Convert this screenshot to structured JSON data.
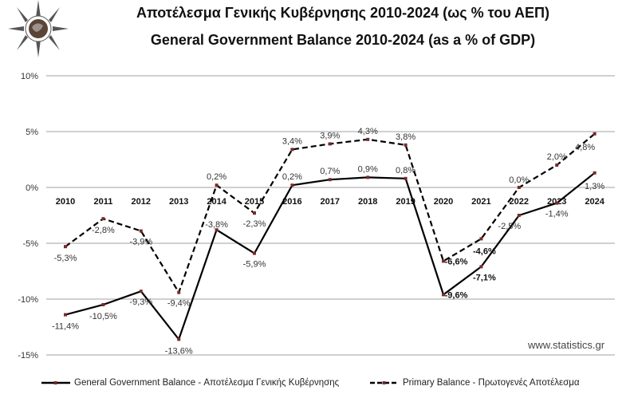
{
  "header": {
    "title_greek": "Αποτέλεσμα Γενικής Κυβέρνησης 2010-2024 (ως % του ΑΕΠ)",
    "title_english": "General Government Balance 2010-2024 (as a % of GDP)",
    "logo": "statistics-compass-logo"
  },
  "watermark": "www.statistics.gr",
  "legend": {
    "series0": "General Government Balance - Αποτέλεσμα Γενικής Κυβέρνησης",
    "series1": "Primary Balance - Πρωτογενές Αποτέλεσμα"
  },
  "chart_data": {
    "type": "line",
    "title": "General Government Balance 2010-2024 (as a % of GDP)",
    "subtitle": "Αποτέλεσμα Γενικής Κυβέρνησης 2010-2024 (ως % του ΑΕΠ)",
    "xlabel": "",
    "ylabel": "",
    "categories": [
      "2010",
      "2011",
      "2012",
      "2013",
      "2014",
      "2015",
      "2016",
      "2017",
      "2018",
      "2019",
      "2020",
      "2021",
      "2022",
      "2023",
      "2024"
    ],
    "series": [
      {
        "name": "General Government Balance - Αποτέλεσμα Γενικής Κυβέρνησης",
        "style": "solid",
        "values": [
          -11.4,
          -10.5,
          -9.3,
          -13.6,
          -3.8,
          -5.9,
          0.2,
          0.7,
          0.9,
          0.8,
          -9.6,
          -7.1,
          -2.5,
          -1.4,
          1.3
        ],
        "labels": [
          "-11,4%",
          "-10,5%",
          "-9,3%",
          "-13,6%",
          "-3,8%",
          "-5,9%",
          "0,2%",
          "0,7%",
          "0,9%",
          "0,8%",
          "-9,6%",
          "-7,1%",
          "-2,5%",
          "-1,4%",
          "1,3%"
        ]
      },
      {
        "name": "Primary Balance - Πρωτογενές Αποτέλεσμα",
        "style": "dashed",
        "values": [
          -5.3,
          -2.8,
          -3.9,
          -9.4,
          0.2,
          -2.3,
          3.4,
          3.9,
          4.3,
          3.8,
          -6.6,
          -4.6,
          0.0,
          2.0,
          4.8
        ],
        "labels": [
          "-5,3%",
          "-2,8%",
          "-3,9%",
          "-9,4%",
          "0,2%",
          "-2,3%",
          "3,4%",
          "3,9%",
          "4,3%",
          "3,8%",
          "-6,6%",
          "-4,6%",
          "0,0%",
          "2,0%",
          "4,8%"
        ]
      }
    ],
    "yticks": [
      "10%",
      "5%",
      "0%",
      "-5%",
      "-10%",
      "-15%"
    ],
    "ylim": [
      -15,
      10
    ],
    "grid": true,
    "legend_position": "bottom",
    "colors": {
      "line": "#000000",
      "marker": "#7a2a2a",
      "grid": "#b5b5b5"
    }
  }
}
